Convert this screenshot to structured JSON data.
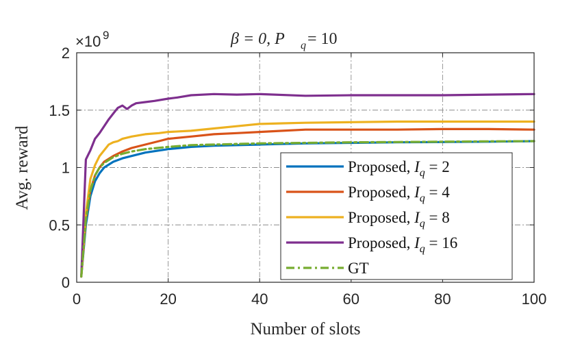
{
  "chart_data": {
    "type": "line",
    "title": "β = 0, P_q = 10",
    "title_display": "β = 0, P",
    "title_sub": "q",
    "title_tail": " = 10",
    "xlabel": "Number of slots",
    "ylabel": "Avg.  reward",
    "y_exponent_label": "×10",
    "y_exponent_power": "9",
    "xlim": [
      0,
      100
    ],
    "ylim": [
      0,
      2
    ],
    "xticks": [
      0,
      20,
      40,
      60,
      80,
      100
    ],
    "xtick_labels": [
      "0",
      "20",
      "40",
      "60",
      "80",
      "100"
    ],
    "yticks": [
      0,
      0.5,
      1,
      1.5,
      2
    ],
    "ytick_labels": [
      "0",
      "0.5",
      "1",
      "1.5",
      "2"
    ],
    "grid": true,
    "legend_position": "bottom-right",
    "series": [
      {
        "name": "Proposed, I_q = 2",
        "legend_main": "Proposed, ",
        "legend_var": "I",
        "legend_sub": "q",
        "legend_tail": " = 2",
        "color": "#0072BD",
        "style": "solid",
        "x": [
          1,
          2,
          3,
          4,
          5,
          6,
          8,
          10,
          12,
          15,
          20,
          25,
          30,
          40,
          50,
          60,
          70,
          80,
          90,
          100
        ],
        "y": [
          0.05,
          0.5,
          0.75,
          0.88,
          0.95,
          1.0,
          1.05,
          1.08,
          1.1,
          1.13,
          1.16,
          1.18,
          1.19,
          1.2,
          1.21,
          1.215,
          1.22,
          1.222,
          1.225,
          1.23
        ]
      },
      {
        "name": "Proposed, I_q = 4",
        "legend_main": "Proposed, ",
        "legend_var": "I",
        "legend_sub": "q",
        "legend_tail": " = 4",
        "color": "#D95319",
        "style": "solid",
        "x": [
          1,
          2,
          3,
          4,
          5,
          6,
          8,
          10,
          12,
          15,
          18,
          20,
          25,
          30,
          35,
          40,
          45,
          50,
          60,
          70,
          80,
          90,
          100
        ],
        "y": [
          0.05,
          0.55,
          0.8,
          0.93,
          1.0,
          1.05,
          1.1,
          1.14,
          1.17,
          1.2,
          1.23,
          1.25,
          1.27,
          1.29,
          1.3,
          1.31,
          1.32,
          1.33,
          1.33,
          1.33,
          1.335,
          1.335,
          1.33
        ]
      },
      {
        "name": "Proposed, I_q = 8",
        "legend_main": "Proposed, ",
        "legend_var": "I",
        "legend_sub": "q",
        "legend_tail": " = 8",
        "color": "#EDB120",
        "style": "solid",
        "x": [
          1,
          2,
          3,
          4,
          5,
          6,
          7,
          8,
          9,
          10,
          12,
          15,
          18,
          20,
          25,
          30,
          35,
          40,
          45,
          50,
          60,
          70,
          80,
          90,
          100
        ],
        "y": [
          0.05,
          0.6,
          0.9,
          1.02,
          1.1,
          1.15,
          1.2,
          1.22,
          1.23,
          1.25,
          1.27,
          1.29,
          1.3,
          1.31,
          1.32,
          1.34,
          1.36,
          1.38,
          1.385,
          1.39,
          1.395,
          1.4,
          1.4,
          1.4,
          1.4
        ]
      },
      {
        "name": "Proposed, I_q = 16",
        "legend_main": "Proposed, ",
        "legend_var": "I",
        "legend_sub": "q",
        "legend_tail": " = 16",
        "color": "#7E2F8E",
        "style": "solid",
        "x": [
          1,
          2,
          3,
          4,
          5,
          6,
          7,
          8,
          9,
          10,
          11,
          12,
          13,
          15,
          17,
          20,
          22,
          25,
          30,
          35,
          40,
          50,
          60,
          70,
          80,
          90,
          100
        ],
        "y": [
          0.05,
          1.07,
          1.15,
          1.25,
          1.3,
          1.36,
          1.42,
          1.47,
          1.52,
          1.54,
          1.51,
          1.54,
          1.56,
          1.57,
          1.58,
          1.6,
          1.61,
          1.63,
          1.64,
          1.635,
          1.64,
          1.625,
          1.63,
          1.63,
          1.63,
          1.635,
          1.64
        ]
      },
      {
        "name": "GT",
        "legend_main": "GT",
        "legend_var": "",
        "legend_sub": "",
        "legend_tail": "",
        "color": "#77AC30",
        "style": "dashdot",
        "x": [
          1,
          2,
          3,
          4,
          5,
          6,
          8,
          10,
          12,
          15,
          20,
          25,
          30,
          40,
          50,
          60,
          70,
          80,
          90,
          100
        ],
        "y": [
          0.05,
          0.55,
          0.8,
          0.93,
          1.0,
          1.04,
          1.09,
          1.12,
          1.14,
          1.16,
          1.18,
          1.195,
          1.2,
          1.21,
          1.215,
          1.22,
          1.222,
          1.225,
          1.228,
          1.23
        ]
      }
    ]
  }
}
